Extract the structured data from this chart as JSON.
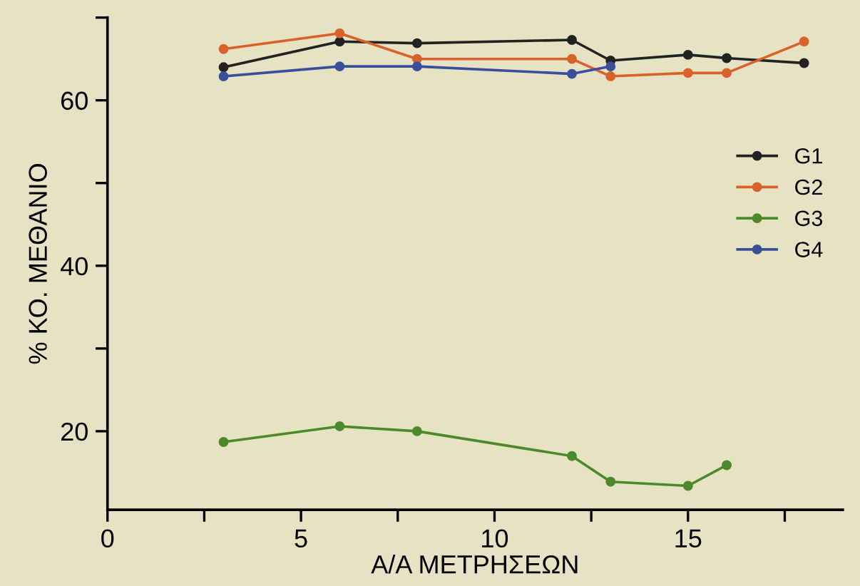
{
  "chart_data": {
    "type": "line",
    "xlabel": "Α/Α ΜΕΤΡΗΣΕΩΝ",
    "ylabel": "% ΚΟ. ΜΕΘΑΝΙΟ",
    "xlim": [
      0,
      19
    ],
    "ylim": [
      10.5,
      70
    ],
    "xticks": [
      0,
      {
        "value": 2.5,
        "label": null
      },
      5,
      {
        "value": 7.5,
        "label": null
      },
      10,
      {
        "value": 12.5,
        "label": null
      },
      15,
      {
        "value": 17.5,
        "label": null
      }
    ],
    "yticks": [
      20,
      {
        "value": 30,
        "label": null
      },
      40,
      {
        "value": 50,
        "label": null
      },
      60,
      {
        "value": 70,
        "label": null
      }
    ],
    "marker": "circle",
    "line_style": "solid",
    "legend": "right",
    "grid": false,
    "series": [
      {
        "name": "G1",
        "color": "#222222",
        "x": [
          3,
          6,
          8,
          12,
          13,
          15,
          16,
          18
        ],
        "values": [
          64,
          67.1,
          66.9,
          67.3,
          64.8,
          65.5,
          65.1,
          64.5
        ]
      },
      {
        "name": "G2",
        "color": "#d9622b",
        "x": [
          3,
          6,
          8,
          12,
          13,
          15,
          16,
          18
        ],
        "values": [
          66.2,
          68.1,
          65.0,
          65.0,
          62.9,
          63.3,
          63.3,
          67.1
        ]
      },
      {
        "name": "G3",
        "color": "#4a8a2a",
        "x": [
          3,
          6,
          8,
          12,
          13,
          15,
          16
        ],
        "values": [
          18.7,
          20.6,
          20.0,
          17.0,
          13.9,
          13.4,
          15.9
        ]
      },
      {
        "name": "G4",
        "color": "#3a4f9a",
        "x": [
          3,
          6,
          8,
          12,
          13
        ],
        "values": [
          62.9,
          64.1,
          64.1,
          63.2,
          64.1
        ]
      }
    ]
  }
}
